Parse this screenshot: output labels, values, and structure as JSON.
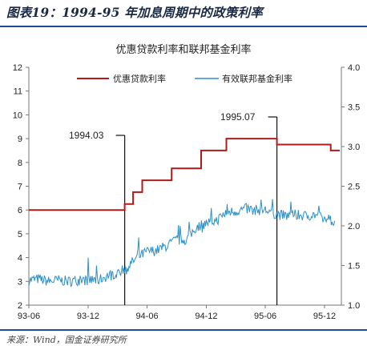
{
  "header": {
    "figure_title": "图表19：1994-95 年加息周期中的政策利率"
  },
  "footer": {
    "source": "来源：Wind，国金证券研究所"
  },
  "colors": {
    "series_red": "#b11b1b",
    "series_blue": "#2e8fc4",
    "rule": "#1f4e99"
  },
  "chart_data": {
    "type": "line",
    "title": "优惠贷款利率和联邦基金利率",
    "x_ticks": [
      "93-06",
      "93-12",
      "94-06",
      "94-12",
      "95-06",
      "95-12"
    ],
    "y_left": {
      "lim": [
        2,
        12
      ],
      "ticks": [
        2,
        3,
        4,
        5,
        6,
        7,
        8,
        9,
        10,
        11,
        12
      ]
    },
    "y_right": {
      "lim": [
        1.0,
        4.0
      ],
      "ticks": [
        "1.0",
        "1.5",
        "2.0",
        "2.5",
        "3.0",
        "3.5",
        "4.0"
      ]
    },
    "legend_position": "top",
    "grid": false,
    "series": [
      {
        "name": "优惠贷款利率",
        "axis": "left",
        "step": true,
        "points": [
          [
            "1993-06-01",
            6.0
          ],
          [
            "1994-03-24",
            6.25
          ],
          [
            "1994-04-19",
            6.75
          ],
          [
            "1994-05-17",
            7.25
          ],
          [
            "1994-08-16",
            7.75
          ],
          [
            "1994-11-15",
            8.5
          ],
          [
            "1995-02-01",
            9.0
          ],
          [
            "1995-07-07",
            8.75
          ],
          [
            "1995-12-20",
            8.5
          ],
          [
            "1996-01-31",
            8.5
          ]
        ]
      },
      {
        "name": "有效联邦基金利率",
        "axis": "left",
        "step": false,
        "points": [
          [
            "1993-06",
            3.05
          ],
          [
            "1993-07",
            3.1
          ],
          [
            "1993-08",
            3.0
          ],
          [
            "1993-09",
            3.05
          ],
          [
            "1993-10",
            3.0
          ],
          [
            "1993-11",
            3.05
          ],
          [
            "1993-12",
            3.05
          ],
          [
            "1994-01",
            3.05
          ],
          [
            "1994-02",
            3.25
          ],
          [
            "1994-03",
            3.35
          ],
          [
            "1994-04",
            3.6
          ],
          [
            "1994-05",
            4.0
          ],
          [
            "1994-06",
            4.25
          ],
          [
            "1994-07",
            4.3
          ],
          [
            "1994-08",
            4.5
          ],
          [
            "1994-09",
            4.75
          ],
          [
            "1994-10",
            4.75
          ],
          [
            "1994-11",
            5.3
          ],
          [
            "1994-12",
            5.45
          ],
          [
            "1995-01",
            5.55
          ],
          [
            "1995-02",
            5.9
          ],
          [
            "1995-03",
            5.95
          ],
          [
            "1995-04",
            6.05
          ],
          [
            "1995-05",
            6.0
          ],
          [
            "1995-06",
            6.0
          ],
          [
            "1995-07",
            5.85
          ],
          [
            "1995-08",
            5.75
          ],
          [
            "1995-09",
            5.8
          ],
          [
            "1995-10",
            5.75
          ],
          [
            "1995-11",
            5.8
          ],
          [
            "1995-12",
            5.6
          ],
          [
            "1996-01",
            5.55
          ]
        ]
      }
    ],
    "annotations": [
      {
        "label": "1994.03",
        "date": "1994-03-01"
      },
      {
        "label": "1995.07",
        "date": "1995-07-01"
      }
    ]
  }
}
